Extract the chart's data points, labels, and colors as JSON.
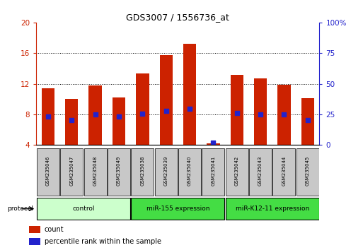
{
  "title": "GDS3007 / 1556736_at",
  "samples": [
    "GSM235046",
    "GSM235047",
    "GSM235048",
    "GSM235049",
    "GSM235038",
    "GSM235039",
    "GSM235040",
    "GSM235041",
    "GSM235042",
    "GSM235043",
    "GSM235044",
    "GSM235045"
  ],
  "count_values": [
    11.4,
    10.0,
    11.8,
    10.2,
    13.3,
    15.7,
    17.2,
    4.2,
    13.2,
    12.7,
    11.9,
    10.1
  ],
  "percentile_values": [
    7.7,
    7.3,
    8.0,
    7.7,
    8.1,
    8.5,
    8.7,
    4.3,
    8.2,
    8.0,
    8.0,
    7.3
  ],
  "ylim_left": [
    4,
    20
  ],
  "ylim_right": [
    0,
    100
  ],
  "yticks_left": [
    4,
    8,
    12,
    16,
    20
  ],
  "yticks_right": [
    0,
    25,
    50,
    75,
    100
  ],
  "bar_color": "#cc2200",
  "dot_color": "#2222cc",
  "bar_width": 0.55,
  "group_info": [
    {
      "start": 0,
      "end": 3,
      "label": "control",
      "color": "#ccffcc"
    },
    {
      "start": 4,
      "end": 7,
      "label": "miR-155 expression",
      "color": "#44dd44"
    },
    {
      "start": 8,
      "end": 11,
      "label": "miR-K12-11 expression",
      "color": "#44dd44"
    }
  ],
  "protocol_label": "protocol",
  "legend_count_label": "count",
  "legend_pct_label": "percentile rank within the sample",
  "grid_color": "black",
  "tick_color_left": "#cc2200",
  "tick_color_right": "#2222cc",
  "sample_box_color": "#c8c8c8",
  "figure_bg": "white"
}
